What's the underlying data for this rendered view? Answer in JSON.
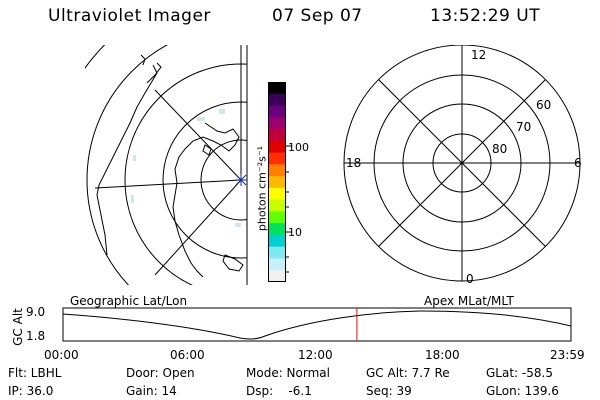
{
  "header": {
    "title": "Ultraviolet Imager",
    "date": "07 Sep 07",
    "time": "13:52:29 UT"
  },
  "colorbar": {
    "unit_label": "photon cm⁻²s⁻¹",
    "tick_labels": [
      "100",
      "10"
    ],
    "colors": [
      "#000000",
      "#3a0058",
      "#6a0080",
      "#9b006e",
      "#c0003a",
      "#e00000",
      "#ff3000",
      "#ff8000",
      "#ffb800",
      "#ffff00",
      "#c8ff00",
      "#60ff00",
      "#00e060",
      "#00d0d0",
      "#7fe8f0",
      "#c8f0f8",
      "#f0f0f0"
    ]
  },
  "left_panel": {
    "caption": "Geographic Lat/Lon"
  },
  "right_panel": {
    "caption": "Apex MLat/MLT",
    "mlt_labels": [
      "12",
      "18",
      "6",
      "0"
    ],
    "lat_labels": [
      "60",
      "70",
      "80"
    ]
  },
  "timeline": {
    "y_label": "GC Alt",
    "y_ticks": [
      "9.0",
      "1.8"
    ],
    "x_ticks": [
      "00:00",
      "06:00",
      "12:00",
      "18:00",
      "23:59"
    ],
    "marker_time_hours": 13.875,
    "colors": {
      "marker": "#ff0000"
    }
  },
  "info": {
    "filter": "Flt: LBHL",
    "ip": "IP: 36.0",
    "door": "Door: Open",
    "gain": "Gain: 14",
    "mode": "Mode: Normal",
    "dsp": "Dsp:    -6.1",
    "gc_alt": "GC Alt: 7.7 Re",
    "seq": "Seq: 39",
    "glat": "GLat: -58.5",
    "glon": "GLon: 139.6"
  }
}
